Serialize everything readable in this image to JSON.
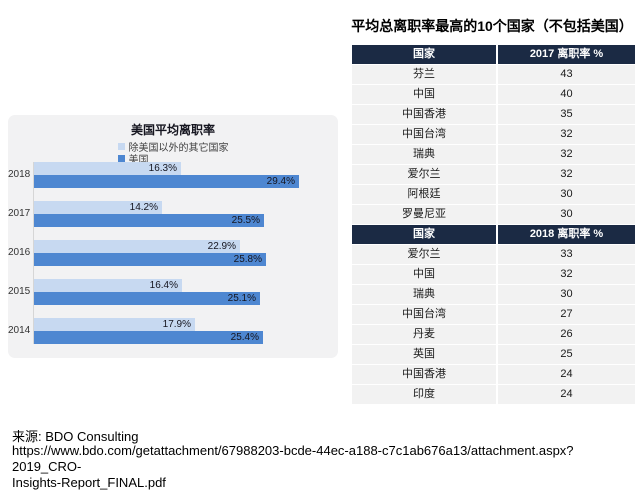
{
  "page": {
    "source_label": "来源: BDO Consulting",
    "source_url_line1": "https://www.bdo.com/getattachment/67988203-bcde-44ec-a188-c7c1ab676a13/attachment.aspx?2019_CRO-",
    "source_url_line2": "Insights-Report_FINAL.pdf"
  },
  "colors": {
    "table_header_navy": "#1b2a44",
    "table_row_gray": "#f2f2f2",
    "bar_light_blue": "#c7d9f1",
    "bar_dark_blue": "#4e87d1",
    "panel_gray": "#f2f2f3"
  },
  "chart_data": {
    "type": "bar",
    "orientation": "horizontal",
    "title": "美国平均离职率",
    "categories": [
      "2018",
      "2017",
      "2016",
      "2015",
      "2014"
    ],
    "series": [
      {
        "name": "除美国以外的其它国家",
        "color": "#c7d9f1",
        "values": [
          16.3,
          14.2,
          22.9,
          16.4,
          17.9
        ]
      },
      {
        "name": "美国",
        "color": "#4e87d1",
        "values": [
          29.4,
          25.5,
          25.8,
          25.1,
          25.4
        ]
      }
    ],
    "value_suffix": "%",
    "xlim": [
      0,
      33
    ],
    "grid": false,
    "legend_position": "top",
    "data_labels": "inside-end"
  },
  "table": {
    "title": "平均总离职率最高的10个国家（不包括美国）",
    "sections": [
      {
        "header": [
          "国家",
          "2017 离职率 %"
        ],
        "rows": [
          [
            "芬兰",
            "43"
          ],
          [
            "中国",
            "40"
          ],
          [
            "中国香港",
            "35"
          ],
          [
            "中国台湾",
            "32"
          ],
          [
            "瑞典",
            "32"
          ],
          [
            "爱尔兰",
            "32"
          ],
          [
            "阿根廷",
            "30"
          ],
          [
            "罗曼尼亚",
            "30"
          ]
        ]
      },
      {
        "header": [
          "国家",
          "2018 离职率 %"
        ],
        "rows": [
          [
            "爱尔兰",
            "33"
          ],
          [
            "中国",
            "32"
          ],
          [
            "瑞典",
            "30"
          ],
          [
            "中国台湾",
            "27"
          ],
          [
            "丹麦",
            "26"
          ],
          [
            "英国",
            "25"
          ],
          [
            "中国香港",
            "24"
          ],
          [
            "印度",
            "24"
          ]
        ]
      }
    ]
  }
}
